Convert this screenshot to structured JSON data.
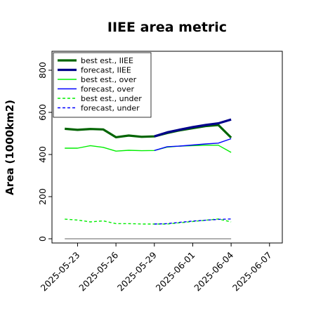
{
  "chart_data": {
    "type": "line",
    "title": "IIEE area metric",
    "xlabel": "",
    "ylabel": "Area (1000km2)",
    "xlim": [
      "2025-05-21",
      "2025-06-08"
    ],
    "ylim": [
      -20,
      890
    ],
    "x_ticks": [
      "2025-05-23",
      "2025-05-26",
      "2025-05-29",
      "2025-06-01",
      "2025-06-04",
      "2025-06-07"
    ],
    "y_ticks": [
      0,
      200,
      400,
      600,
      800
    ],
    "highlight_tick": "2025-05-29",
    "highlight_color": "#2e8b2e",
    "grid": false,
    "legend_position": "upper left",
    "series": [
      {
        "name": "best est., IIEE",
        "color": "#006400",
        "style": "solid",
        "width": "thick",
        "x": [
          "2025-05-22",
          "2025-05-23",
          "2025-05-24",
          "2025-05-25",
          "2025-05-26",
          "2025-05-27",
          "2025-05-28",
          "2025-05-29",
          "2025-05-30",
          "2025-05-31",
          "2025-06-01",
          "2025-06-02",
          "2025-06-03",
          "2025-06-04"
        ],
        "y": [
          522,
          517,
          521,
          519,
          482,
          490,
          484,
          486,
          502,
          515,
          525,
          535,
          540,
          480
        ]
      },
      {
        "name": "forecast, IIEE",
        "color": "#00008b",
        "style": "solid",
        "width": "thick",
        "x": [
          "2025-05-29",
          "2025-05-30",
          "2025-05-31",
          "2025-06-01",
          "2025-06-02",
          "2025-06-03",
          "2025-06-04"
        ],
        "y": [
          486,
          505,
          518,
          530,
          540,
          548,
          566
        ]
      },
      {
        "name": "best est., over",
        "color": "#00ee00",
        "style": "solid",
        "width": "thin",
        "x": [
          "2025-05-22",
          "2025-05-23",
          "2025-05-24",
          "2025-05-25",
          "2025-05-26",
          "2025-05-27",
          "2025-05-28",
          "2025-05-29",
          "2025-05-30",
          "2025-05-31",
          "2025-06-01",
          "2025-06-02",
          "2025-06-03",
          "2025-06-04"
        ],
        "y": [
          430,
          430,
          442,
          434,
          416,
          420,
          418,
          419,
          435,
          440,
          442,
          444,
          444,
          410
        ]
      },
      {
        "name": "forecast, over",
        "color": "#0000ff",
        "style": "solid",
        "width": "thin",
        "x": [
          "2025-05-29",
          "2025-05-30",
          "2025-05-31",
          "2025-06-01",
          "2025-06-02",
          "2025-06-03",
          "2025-06-04"
        ],
        "y": [
          419,
          437,
          440,
          445,
          450,
          454,
          475
        ]
      },
      {
        "name": "best est., under",
        "color": "#00ee00",
        "style": "dashed",
        "width": "thin",
        "x": [
          "2025-05-22",
          "2025-05-23",
          "2025-05-24",
          "2025-05-25",
          "2025-05-26",
          "2025-05-27",
          "2025-05-28",
          "2025-05-29",
          "2025-05-30",
          "2025-05-31",
          "2025-06-01",
          "2025-06-02",
          "2025-06-03",
          "2025-06-04"
        ],
        "y": [
          93,
          89,
          80,
          85,
          72,
          72,
          70,
          70,
          70,
          76,
          82,
          88,
          94,
          80
        ]
      },
      {
        "name": "forecast, under",
        "color": "#0000ff",
        "style": "dashed",
        "width": "thin",
        "x": [
          "2025-05-29",
          "2025-05-30",
          "2025-05-31",
          "2025-06-01",
          "2025-06-02",
          "2025-06-03",
          "2025-06-04"
        ],
        "y": [
          70,
          72,
          78,
          84,
          88,
          92,
          94
        ]
      }
    ],
    "reference_line": {
      "color": "#808080",
      "x": [
        "2025-05-22",
        "2025-06-04"
      ],
      "y": [
        0,
        0
      ]
    }
  }
}
